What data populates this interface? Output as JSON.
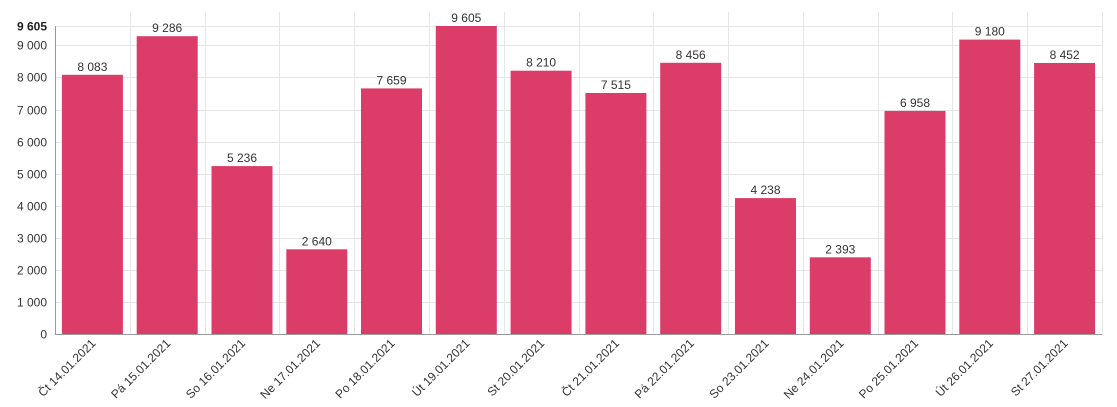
{
  "chart_data": {
    "type": "bar",
    "categories": [
      "Čt 14.01.2021",
      "Pá 15.01.2021",
      "So 16.01.2021",
      "Ne 17.01.2021",
      "Po 18.01.2021",
      "Út 19.01.2021",
      "St 20.01.2021",
      "Čt 21.01.2021",
      "Pá 22.01.2021",
      "So 23.01.2021",
      "Ne 24.01.2021",
      "Po 25.01.2021",
      "Út 26.01.2021",
      "St 27.01.2021"
    ],
    "values": [
      8083,
      9286,
      5236,
      2640,
      7659,
      9605,
      8210,
      7515,
      8456,
      4238,
      2393,
      6958,
      9180,
      8452
    ],
    "data_labels": [
      "8 083",
      "9 286",
      "5 236",
      "2 640",
      "7 659",
      "9 605",
      "8 210",
      "7 515",
      "8 456",
      "4 238",
      "2 393",
      "6 958",
      "9 180",
      "8 452"
    ],
    "y_ticks": [
      {
        "value": 0,
        "label": "0"
      },
      {
        "value": 1000,
        "label": "1 000"
      },
      {
        "value": 2000,
        "label": "2 000"
      },
      {
        "value": 3000,
        "label": "3 000"
      },
      {
        "value": 4000,
        "label": "4 000"
      },
      {
        "value": 5000,
        "label": "5 000"
      },
      {
        "value": 6000,
        "label": "6 000"
      },
      {
        "value": 7000,
        "label": "7 000"
      },
      {
        "value": 8000,
        "label": "8 000"
      },
      {
        "value": 9000,
        "label": "9 000"
      },
      {
        "value": 9605,
        "label": "9 605",
        "emphasis": true
      }
    ],
    "ylim": [
      0,
      9605
    ],
    "grid": true,
    "title": "",
    "xlabel": "",
    "ylabel": "",
    "bar_color": "#dc3d68"
  }
}
